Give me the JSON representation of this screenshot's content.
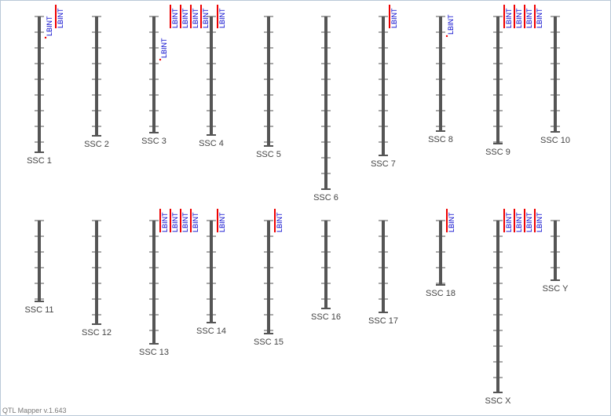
{
  "chromosomes": [
    {
      "label": "SSC 1",
      "qtls": [
        "LBINT",
        "LBINT"
      ]
    },
    {
      "label": "SSC 2",
      "qtls": []
    },
    {
      "label": "SSC 3",
      "qtls": [
        "LBINT",
        "LBINT",
        "LBINT",
        "LBINT",
        "LBINT"
      ]
    },
    {
      "label": "SSC 4",
      "qtls": [
        "LBINT"
      ]
    },
    {
      "label": "SSC 5",
      "qtls": []
    },
    {
      "label": "SSC 6",
      "qtls": []
    },
    {
      "label": "SSC 7",
      "qtls": [
        "LBINT"
      ]
    },
    {
      "label": "SSC 8",
      "qtls": [
        "LBINT"
      ]
    },
    {
      "label": "SSC 9",
      "qtls": [
        "LBINT",
        "LBINT",
        "LBINT",
        "LBINT"
      ]
    },
    {
      "label": "SSC 10",
      "qtls": []
    },
    {
      "label": "SSC 11",
      "qtls": []
    },
    {
      "label": "SSC 12",
      "qtls": []
    },
    {
      "label": "SSC 13",
      "qtls": [
        "LBINT",
        "LBINT",
        "LBINT",
        "LBINT"
      ]
    },
    {
      "label": "SSC 14",
      "qtls": [
        "LBINT"
      ]
    },
    {
      "label": "SSC 15",
      "qtls": [
        "LBINT"
      ]
    },
    {
      "label": "SSC 16",
      "qtls": []
    },
    {
      "label": "SSC 17",
      "qtls": []
    },
    {
      "label": "SSC 18",
      "qtls": [
        "LBINT"
      ]
    },
    {
      "label": "SSC X",
      "qtls": [
        "LBINT",
        "LBINT",
        "LBINT",
        "LBINT"
      ]
    },
    {
      "label": "SSC Y",
      "qtls": []
    }
  ],
  "footer": "QTL Mapper v.1.643"
}
